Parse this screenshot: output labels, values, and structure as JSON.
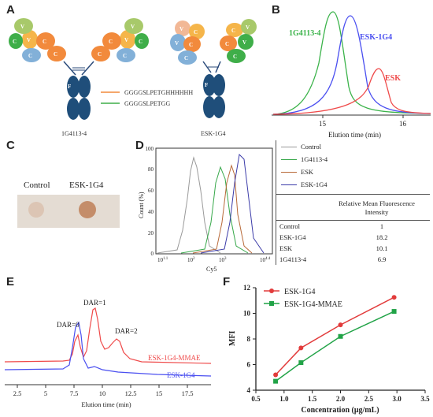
{
  "panels": {
    "A": {
      "label": "A",
      "antibody_left": "1G4113-4",
      "antibody_right": "ESK-1G4",
      "legend": [
        {
          "text": "GGGGSLPETGHHHHHH",
          "color": "#f28a3c"
        },
        {
          "text": "GGGGSLPETGG",
          "color": "#3fae49"
        }
      ],
      "domain_labels": {
        "vh": "V",
        "vh_sub": "H",
        "vl": "V",
        "vl_sub": "L",
        "ch": "C",
        "ch_sub": "H",
        "cl": "C",
        "cl_sub": "L",
        "fc": "F",
        "fc_sub": "C"
      }
    },
    "B": {
      "label": "B",
      "xlabel": "Elution time (min)",
      "xticks": [
        "15",
        "16"
      ],
      "series": [
        {
          "name": "1G4113-4",
          "color": "#3bb34a"
        },
        {
          "name": "ESK-1G4",
          "color": "#4a4ff0"
        },
        {
          "name": "ESK",
          "color": "#ef4a4a"
        }
      ]
    },
    "C": {
      "label": "C",
      "lanes": [
        "Control",
        "ESK-1G4"
      ]
    },
    "D": {
      "label": "D",
      "ylabel": "Count (%)",
      "xlabel": "Cy5",
      "yticks": [
        "0",
        "20",
        "40",
        "60",
        "80",
        "100"
      ],
      "xticks": [
        {
          "base": "10",
          "exp": "1.1"
        },
        {
          "base": "10",
          "exp": "2"
        },
        {
          "base": "10",
          "exp": "3"
        },
        {
          "base": "10",
          "exp": "4.4"
        }
      ],
      "legend": [
        {
          "name": "Control",
          "color": "#9a9a9a"
        },
        {
          "name": "1G4113-4",
          "color": "#37a84a"
        },
        {
          "name": "ESK",
          "color": "#b86a3a"
        },
        {
          "name": "ESK-1G4",
          "color": "#3a3aa8"
        }
      ],
      "table": {
        "header": "Relative Mean Fluorescence Intensity",
        "rows": [
          {
            "name": "Control",
            "value": "1"
          },
          {
            "name": "ESK-1G4",
            "value": "18.2"
          },
          {
            "name": "ESK",
            "value": "10.1"
          },
          {
            "name": "1G4113-4",
            "value": "6.9"
          }
        ]
      }
    },
    "E": {
      "label": "E",
      "xlabel": "Elution time (min)",
      "xticks": [
        "2.5",
        "5",
        "7.5",
        "10",
        "12.5",
        "15",
        "17.5"
      ],
      "peaks": [
        "DAR=0",
        "DAR=1",
        "DAR=2"
      ],
      "series": [
        {
          "name": "ESK-1G4-MMAE",
          "color": "#ef4a4a"
        },
        {
          "name": "ESK-1G4",
          "color": "#4a4ff0"
        }
      ]
    },
    "F": {
      "label": "F",
      "ylabel": "MFI",
      "xlabel": "Concentration (μg/mL)",
      "xticks": [
        "0.5",
        "1.0",
        "1.5",
        "2.0",
        "2.5",
        "3.0",
        "3.5"
      ],
      "yticks": [
        "4",
        "6",
        "8",
        "10",
        "12"
      ]
    }
  },
  "chart_data": [
    {
      "type": "line",
      "xlabel": "Concentration (μg/mL)",
      "ylabel": "MFI",
      "xlim": [
        0.5,
        3.5
      ],
      "ylim": [
        4,
        12
      ],
      "legend_position": "top-left",
      "x": [
        0.85,
        1.3,
        2.0,
        2.95
      ],
      "series": [
        {
          "name": "ESK-1G4",
          "color": "#e23b3b",
          "marker": "circle",
          "values": [
            5.2,
            7.3,
            9.1,
            11.25
          ]
        },
        {
          "name": "ESK-1G4-MMAE",
          "color": "#21a347",
          "marker": "square",
          "values": [
            4.7,
            6.15,
            8.2,
            10.15
          ]
        }
      ]
    }
  ]
}
